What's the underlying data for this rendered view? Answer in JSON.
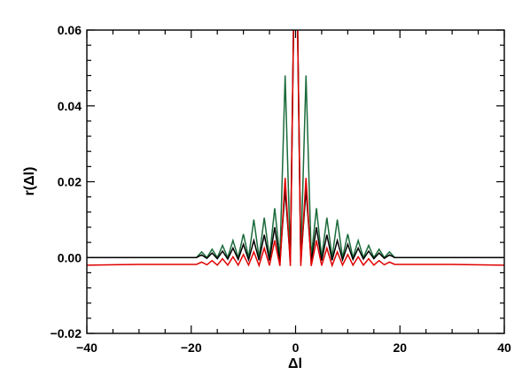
{
  "chart_data": {
    "type": "line",
    "title": "",
    "xlabel": "Δl",
    "ylabel": "r(Δl)",
    "xlim": [
      -40,
      40
    ],
    "ylim": [
      -0.02,
      0.06
    ],
    "xticks": [
      -40,
      -20,
      0,
      20,
      40
    ],
    "xtick_labels": [
      "−40",
      "−20",
      "0",
      "20",
      "40"
    ],
    "yticks": [
      -0.02,
      0.0,
      0.02,
      0.04,
      0.06
    ],
    "ytick_labels": [
      "−0.02",
      "0.00",
      "0.02",
      "0.04",
      "0.06"
    ],
    "grid": false,
    "legend": false,
    "series": [
      {
        "color": "#1a6b3a",
        "x": [
          -40,
          -30,
          -19,
          -18,
          -17,
          -16,
          -15,
          -14,
          -13,
          -12,
          -11,
          -10,
          -9,
          -8,
          -7,
          -6,
          -5,
          -4,
          -3,
          -2,
          -1,
          0,
          1,
          2,
          3,
          4,
          5,
          6,
          7,
          8,
          9,
          10,
          11,
          12,
          13,
          14,
          15,
          16,
          17,
          18,
          19,
          30,
          40
        ],
        "y": [
          0.0,
          0.0,
          0.0,
          0.0015,
          0.0,
          0.0022,
          0.0,
          0.0032,
          0.0,
          0.0045,
          0.0,
          0.0062,
          0.0,
          0.01,
          0.0,
          0.0105,
          0.0,
          0.013,
          0.0,
          0.048,
          0.0,
          0.1,
          0.0,
          0.048,
          0.0,
          0.013,
          0.0,
          0.0105,
          0.0,
          0.01,
          0.0,
          0.0062,
          0.0,
          0.0045,
          0.0,
          0.0032,
          0.0,
          0.0022,
          0.0,
          0.0015,
          0.0,
          0.0,
          0.0
        ]
      },
      {
        "color": "#000000",
        "x": [
          -40,
          -30,
          -19,
          -18,
          -17,
          -16,
          -15,
          -14,
          -13,
          -12,
          -11,
          -10,
          -9,
          -8,
          -7,
          -6,
          -5,
          -4,
          -3,
          -2,
          -1,
          0,
          1,
          2,
          3,
          4,
          5,
          6,
          7,
          8,
          9,
          10,
          11,
          12,
          13,
          14,
          15,
          16,
          17,
          18,
          19,
          30,
          40
        ],
        "y": [
          0.0,
          0.0,
          0.0,
          0.0007,
          -0.0002,
          0.0012,
          -0.0003,
          0.0017,
          -0.0004,
          0.0025,
          -0.0005,
          0.0035,
          -0.0006,
          0.0045,
          -0.0007,
          0.006,
          -0.0008,
          0.008,
          -0.001,
          0.018,
          -0.001,
          0.1,
          -0.001,
          0.018,
          -0.001,
          0.008,
          -0.0008,
          0.006,
          -0.0007,
          0.0045,
          -0.0006,
          0.0035,
          -0.0005,
          0.0025,
          -0.0004,
          0.0017,
          -0.0003,
          0.0012,
          -0.0002,
          0.0007,
          0.0,
          0.0,
          0.0
        ]
      },
      {
        "color": "#e00000",
        "x": [
          -40,
          -30,
          -19,
          -18,
          -17,
          -16,
          -15,
          -14,
          -13,
          -12,
          -11,
          -10,
          -9,
          -8,
          -7,
          -6,
          -5,
          -4,
          -3,
          -2,
          -1,
          0,
          1,
          2,
          3,
          4,
          5,
          6,
          7,
          8,
          9,
          10,
          11,
          12,
          13,
          14,
          15,
          16,
          17,
          18,
          19,
          30,
          40
        ],
        "y": [
          -0.002,
          -0.0018,
          -0.0018,
          -0.0012,
          -0.0019,
          -0.0008,
          -0.002,
          -0.0003,
          -0.002,
          0.0002,
          -0.002,
          0.0008,
          -0.002,
          0.0015,
          -0.0021,
          0.0025,
          -0.0021,
          0.0045,
          -0.0022,
          0.021,
          -0.0022,
          0.1,
          -0.0022,
          0.021,
          -0.0022,
          0.0045,
          -0.0021,
          0.0025,
          -0.0021,
          0.0015,
          -0.002,
          0.0008,
          -0.002,
          0.0002,
          -0.002,
          -0.0003,
          -0.002,
          -0.0008,
          -0.0019,
          -0.0012,
          -0.0018,
          -0.0018,
          -0.002
        ]
      }
    ]
  }
}
